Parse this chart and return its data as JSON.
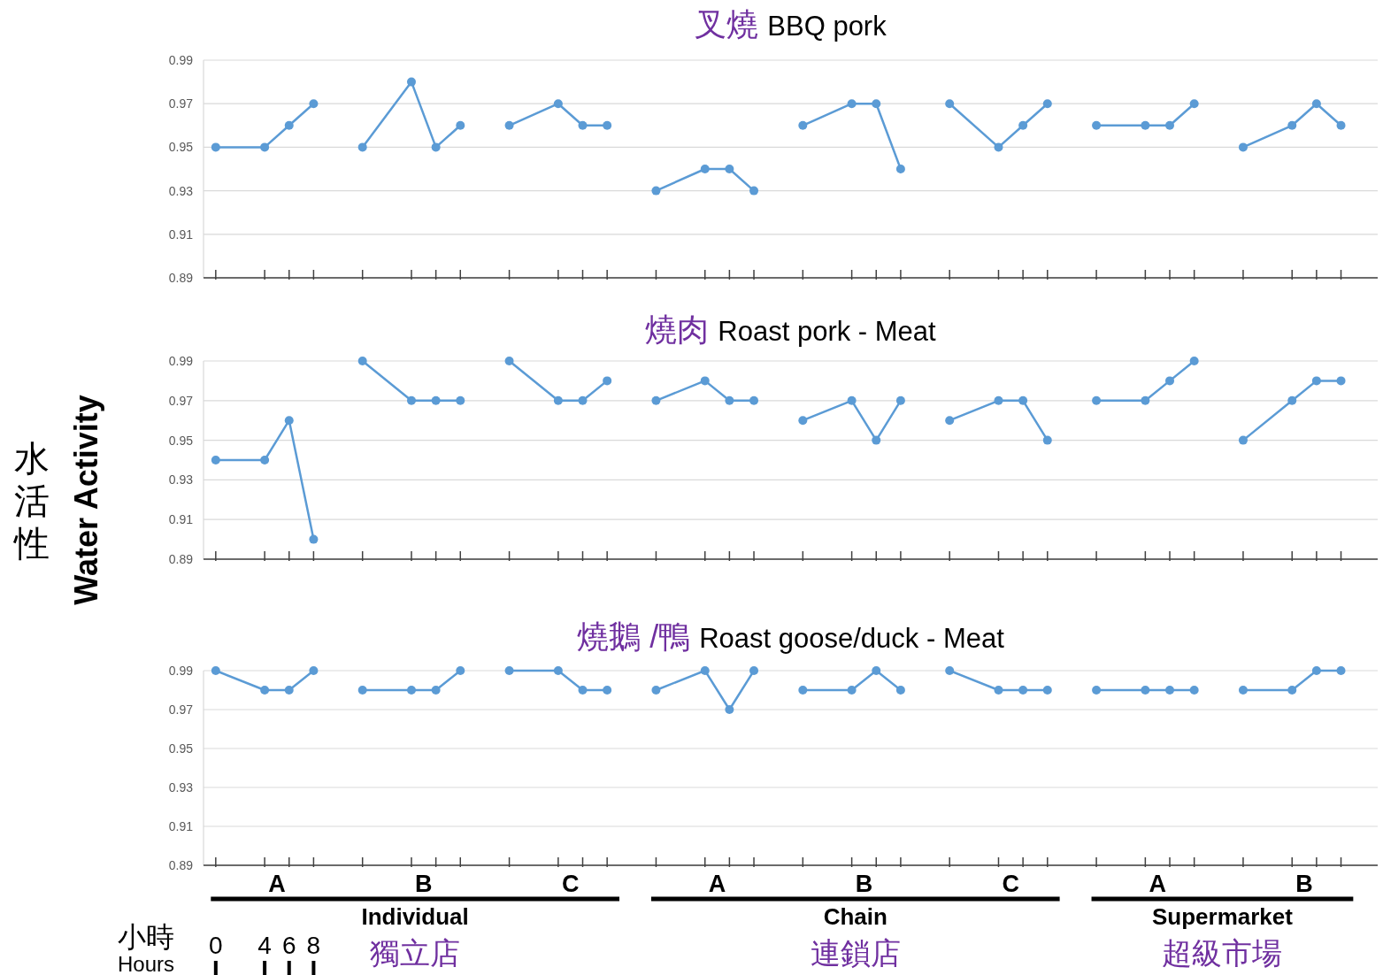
{
  "chart_data": [
    {
      "type": "line",
      "title": "叉燒 BBQ pork",
      "ylim": [
        0.89,
        0.99
      ],
      "yticks": [
        0.89,
        0.91,
        0.93,
        0.95,
        0.97,
        0.99
      ],
      "grid": "y",
      "marker": "circle",
      "categories": [
        null,
        null,
        null,
        null,
        null,
        null,
        null,
        null,
        null,
        null,
        null,
        null,
        null,
        null,
        null,
        null,
        null,
        null,
        null,
        null,
        null,
        null,
        null,
        null,
        null,
        null,
        null,
        null,
        null,
        null,
        null,
        null,
        null,
        null,
        null,
        null,
        null,
        null,
        null,
        null,
        null,
        null,
        null,
        null,
        null,
        null,
        null,
        null
      ],
      "series": [
        {
          "color": "#5b9bd5",
          "values": [
            0.95,
            null,
            0.95,
            0.96,
            0.97,
            null,
            null,
            null,
            null,
            null,
            null,
            null,
            null,
            null,
            null,
            null,
            null,
            null,
            null,
            null,
            null,
            null,
            null,
            null,
            null,
            null,
            null,
            null,
            null,
            null,
            null,
            null,
            null,
            null,
            null,
            null,
            null,
            null,
            null,
            null,
            null,
            null,
            null,
            null,
            null,
            null,
            null,
            null
          ]
        },
        {
          "color": "#5b9bd5",
          "values": [
            null,
            null,
            null,
            null,
            null,
            null,
            0.95,
            null,
            0.98,
            0.95,
            0.96,
            null,
            null,
            null,
            null,
            null,
            null,
            null,
            null,
            null,
            null,
            null,
            null,
            null,
            null,
            null,
            null,
            null,
            null,
            null,
            null,
            null,
            null,
            null,
            null,
            null,
            null,
            null,
            null,
            null,
            null,
            null,
            null,
            null,
            null,
            null,
            null,
            null
          ]
        },
        {
          "color": "#5b9bd5",
          "values": [
            null,
            null,
            null,
            null,
            null,
            null,
            null,
            null,
            null,
            null,
            null,
            null,
            0.96,
            null,
            0.97,
            0.96,
            0.96,
            null,
            null,
            null,
            null,
            null,
            null,
            null,
            null,
            null,
            null,
            null,
            null,
            null,
            null,
            null,
            null,
            null,
            null,
            null,
            null,
            null,
            null,
            null,
            null,
            null,
            null,
            null,
            null,
            null,
            null,
            null
          ]
        },
        {
          "color": "#5b9bd5",
          "values": [
            null,
            null,
            null,
            null,
            null,
            null,
            null,
            null,
            null,
            null,
            null,
            null,
            null,
            null,
            null,
            null,
            null,
            null,
            0.93,
            null,
            0.94,
            0.94,
            0.93,
            null,
            null,
            null,
            null,
            null,
            null,
            null,
            null,
            null,
            null,
            null,
            null,
            null,
            null,
            null,
            null,
            null,
            null,
            null,
            null,
            null,
            null,
            null,
            null,
            null
          ]
        },
        {
          "color": "#5b9bd5",
          "values": [
            null,
            null,
            null,
            null,
            null,
            null,
            null,
            null,
            null,
            null,
            null,
            null,
            null,
            null,
            null,
            null,
            null,
            null,
            null,
            null,
            null,
            null,
            null,
            null,
            0.96,
            null,
            0.97,
            0.97,
            0.94,
            null,
            null,
            null,
            null,
            null,
            null,
            null,
            null,
            null,
            null,
            null,
            null,
            null,
            null,
            null,
            null,
            null,
            null,
            null
          ]
        },
        {
          "color": "#5b9bd5",
          "values": [
            null,
            null,
            null,
            null,
            null,
            null,
            null,
            null,
            null,
            null,
            null,
            null,
            null,
            null,
            null,
            null,
            null,
            null,
            null,
            null,
            null,
            null,
            null,
            null,
            null,
            null,
            null,
            null,
            null,
            null,
            0.97,
            null,
            0.95,
            0.96,
            0.97,
            null,
            null,
            null,
            null,
            null,
            null,
            null,
            null,
            null,
            null,
            null,
            null,
            null
          ]
        },
        {
          "color": "#5b9bd5",
          "values": [
            null,
            null,
            null,
            null,
            null,
            null,
            null,
            null,
            null,
            null,
            null,
            null,
            null,
            null,
            null,
            null,
            null,
            null,
            null,
            null,
            null,
            null,
            null,
            null,
            null,
            null,
            null,
            null,
            null,
            null,
            null,
            null,
            null,
            null,
            null,
            null,
            0.96,
            null,
            0.96,
            0.96,
            0.97,
            null,
            null,
            null,
            null,
            null,
            null,
            null
          ]
        },
        {
          "color": "#5b9bd5",
          "values": [
            null,
            null,
            null,
            null,
            null,
            null,
            null,
            null,
            null,
            null,
            null,
            null,
            null,
            null,
            null,
            null,
            null,
            null,
            null,
            null,
            null,
            null,
            null,
            null,
            null,
            null,
            null,
            null,
            null,
            null,
            null,
            null,
            null,
            null,
            null,
            null,
            null,
            null,
            null,
            null,
            null,
            null,
            0.95,
            null,
            0.96,
            0.97,
            0.96,
            null
          ]
        }
      ]
    },
    {
      "type": "line",
      "title": "燒肉 Roast pork - Meat",
      "ylabel": "Water Activity",
      "annotations": [
        "水活性"
      ],
      "ylim": [
        0.89,
        0.99
      ],
      "yticks": [
        0.89,
        0.91,
        0.93,
        0.95,
        0.97,
        0.99
      ],
      "grid": "y",
      "marker": "circle",
      "categories": [
        null,
        null,
        null,
        null,
        null,
        null,
        null,
        null,
        null,
        null,
        null,
        null,
        null,
        null,
        null,
        null,
        null,
        null,
        null,
        null,
        null,
        null,
        null,
        null,
        null,
        null,
        null,
        null,
        null,
        null,
        null,
        null,
        null,
        null,
        null,
        null,
        null,
        null,
        null,
        null,
        null,
        null,
        null,
        null,
        null,
        null,
        null,
        null
      ],
      "series": [
        {
          "color": "#5b9bd5",
          "values": [
            0.94,
            null,
            0.94,
            0.96,
            0.9,
            null,
            null,
            null,
            null,
            null,
            null,
            null,
            null,
            null,
            null,
            null,
            null,
            null,
            null,
            null,
            null,
            null,
            null,
            null,
            null,
            null,
            null,
            null,
            null,
            null,
            null,
            null,
            null,
            null,
            null,
            null,
            null,
            null,
            null,
            null,
            null,
            null,
            null,
            null,
            null,
            null,
            null,
            null
          ]
        },
        {
          "color": "#5b9bd5",
          "values": [
            null,
            null,
            null,
            null,
            null,
            null,
            0.99,
            null,
            0.97,
            0.97,
            0.97,
            null,
            null,
            null,
            null,
            null,
            null,
            null,
            null,
            null,
            null,
            null,
            null,
            null,
            null,
            null,
            null,
            null,
            null,
            null,
            null,
            null,
            null,
            null,
            null,
            null,
            null,
            null,
            null,
            null,
            null,
            null,
            null,
            null,
            null,
            null,
            null,
            null
          ]
        },
        {
          "color": "#5b9bd5",
          "values": [
            null,
            null,
            null,
            null,
            null,
            null,
            null,
            null,
            null,
            null,
            null,
            null,
            0.99,
            null,
            0.97,
            0.97,
            0.98,
            null,
            null,
            null,
            null,
            null,
            null,
            null,
            null,
            null,
            null,
            null,
            null,
            null,
            null,
            null,
            null,
            null,
            null,
            null,
            null,
            null,
            null,
            null,
            null,
            null,
            null,
            null,
            null,
            null,
            null,
            null
          ]
        },
        {
          "color": "#5b9bd5",
          "values": [
            null,
            null,
            null,
            null,
            null,
            null,
            null,
            null,
            null,
            null,
            null,
            null,
            null,
            null,
            null,
            null,
            null,
            null,
            0.97,
            null,
            0.98,
            0.97,
            0.97,
            null,
            null,
            null,
            null,
            null,
            null,
            null,
            null,
            null,
            null,
            null,
            null,
            null,
            null,
            null,
            null,
            null,
            null,
            null,
            null,
            null,
            null,
            null,
            null,
            null
          ]
        },
        {
          "color": "#5b9bd5",
          "values": [
            null,
            null,
            null,
            null,
            null,
            null,
            null,
            null,
            null,
            null,
            null,
            null,
            null,
            null,
            null,
            null,
            null,
            null,
            null,
            null,
            null,
            null,
            null,
            null,
            0.96,
            null,
            0.97,
            0.95,
            0.97,
            null,
            null,
            null,
            null,
            null,
            null,
            null,
            null,
            null,
            null,
            null,
            null,
            null,
            null,
            null,
            null,
            null,
            null,
            null
          ]
        },
        {
          "color": "#5b9bd5",
          "values": [
            null,
            null,
            null,
            null,
            null,
            null,
            null,
            null,
            null,
            null,
            null,
            null,
            null,
            null,
            null,
            null,
            null,
            null,
            null,
            null,
            null,
            null,
            null,
            null,
            null,
            null,
            null,
            null,
            null,
            null,
            0.96,
            null,
            0.97,
            0.97,
            0.95,
            null,
            null,
            null,
            null,
            null,
            null,
            null,
            null,
            null,
            null,
            null,
            null,
            null
          ]
        },
        {
          "color": "#5b9bd5",
          "values": [
            null,
            null,
            null,
            null,
            null,
            null,
            null,
            null,
            null,
            null,
            null,
            null,
            null,
            null,
            null,
            null,
            null,
            null,
            null,
            null,
            null,
            null,
            null,
            null,
            null,
            null,
            null,
            null,
            null,
            null,
            null,
            null,
            null,
            null,
            null,
            null,
            0.97,
            null,
            0.97,
            0.98,
            0.99,
            null,
            null,
            null,
            null,
            null,
            null,
            null
          ]
        },
        {
          "color": "#5b9bd5",
          "values": [
            null,
            null,
            null,
            null,
            null,
            null,
            null,
            null,
            null,
            null,
            null,
            null,
            null,
            null,
            null,
            null,
            null,
            null,
            null,
            null,
            null,
            null,
            null,
            null,
            null,
            null,
            null,
            null,
            null,
            null,
            null,
            null,
            null,
            null,
            null,
            null,
            null,
            null,
            null,
            null,
            null,
            null,
            0.95,
            null,
            0.97,
            0.98,
            0.98,
            null
          ]
        }
      ]
    },
    {
      "type": "line",
      "title": "燒鵝 /鴨 Roast goose/duck - Meat",
      "annotations": [
        "A",
        "B",
        "C",
        "A",
        "B",
        "C",
        "A",
        "B",
        "Individual",
        "獨立店",
        "Chain",
        "連鎖店",
        "Supermarket",
        "超級市場",
        "小時",
        "Hours",
        "0",
        "4",
        "6",
        "8"
      ],
      "ylim": [
        0.89,
        0.99
      ],
      "yticks": [
        0.89,
        0.91,
        0.93,
        0.95,
        0.97,
        0.99
      ],
      "grid": "y",
      "marker": "circle",
      "categories": [
        null,
        null,
        null,
        null,
        null,
        null,
        null,
        null,
        null,
        null,
        null,
        null,
        null,
        null,
        null,
        null,
        null,
        null,
        null,
        null,
        null,
        null,
        null,
        null,
        null,
        null,
        null,
        null,
        null,
        null,
        null,
        null,
        null,
        null,
        null,
        null,
        null,
        null,
        null,
        null,
        null,
        null,
        null,
        null,
        null,
        null,
        null,
        null
      ],
      "series": [
        {
          "color": "#5b9bd5",
          "values": [
            0.99,
            null,
            0.98,
            0.98,
            0.99,
            null,
            null,
            null,
            null,
            null,
            null,
            null,
            null,
            null,
            null,
            null,
            null,
            null,
            null,
            null,
            null,
            null,
            null,
            null,
            null,
            null,
            null,
            null,
            null,
            null,
            null,
            null,
            null,
            null,
            null,
            null,
            null,
            null,
            null,
            null,
            null,
            null,
            null,
            null,
            null,
            null,
            null,
            null
          ]
        },
        {
          "color": "#5b9bd5",
          "values": [
            null,
            null,
            null,
            null,
            null,
            null,
            0.98,
            null,
            0.98,
            0.98,
            0.99,
            null,
            null,
            null,
            null,
            null,
            null,
            null,
            null,
            null,
            null,
            null,
            null,
            null,
            null,
            null,
            null,
            null,
            null,
            null,
            null,
            null,
            null,
            null,
            null,
            null,
            null,
            null,
            null,
            null,
            null,
            null,
            null,
            null,
            null,
            null,
            null,
            null
          ]
        },
        {
          "color": "#5b9bd5",
          "values": [
            null,
            null,
            null,
            null,
            null,
            null,
            null,
            null,
            null,
            null,
            null,
            null,
            0.99,
            null,
            0.99,
            0.98,
            0.98,
            null,
            null,
            null,
            null,
            null,
            null,
            null,
            null,
            null,
            null,
            null,
            null,
            null,
            null,
            null,
            null,
            null,
            null,
            null,
            null,
            null,
            null,
            null,
            null,
            null,
            null,
            null,
            null,
            null,
            null,
            null
          ]
        },
        {
          "color": "#5b9bd5",
          "values": [
            null,
            null,
            null,
            null,
            null,
            null,
            null,
            null,
            null,
            null,
            null,
            null,
            null,
            null,
            null,
            null,
            null,
            null,
            0.98,
            null,
            0.99,
            0.97,
            0.99,
            null,
            null,
            null,
            null,
            null,
            null,
            null,
            null,
            null,
            null,
            null,
            null,
            null,
            null,
            null,
            null,
            null,
            null,
            null,
            null,
            null,
            null,
            null,
            null,
            null
          ]
        },
        {
          "color": "#5b9bd5",
          "values": [
            null,
            null,
            null,
            null,
            null,
            null,
            null,
            null,
            null,
            null,
            null,
            null,
            null,
            null,
            null,
            null,
            null,
            null,
            null,
            null,
            null,
            null,
            null,
            null,
            0.98,
            null,
            0.98,
            0.99,
            0.98,
            null,
            null,
            null,
            null,
            null,
            null,
            null,
            null,
            null,
            null,
            null,
            null,
            null,
            null,
            null,
            null,
            null,
            null,
            null
          ]
        },
        {
          "color": "#5b9bd5",
          "values": [
            null,
            null,
            null,
            null,
            null,
            null,
            null,
            null,
            null,
            null,
            null,
            null,
            null,
            null,
            null,
            null,
            null,
            null,
            null,
            null,
            null,
            null,
            null,
            null,
            null,
            null,
            null,
            null,
            null,
            null,
            0.99,
            null,
            0.98,
            0.98,
            0.98,
            null,
            null,
            null,
            null,
            null,
            null,
            null,
            null,
            null,
            null,
            null,
            null,
            null
          ]
        },
        {
          "color": "#5b9bd5",
          "values": [
            null,
            null,
            null,
            null,
            null,
            null,
            null,
            null,
            null,
            null,
            null,
            null,
            null,
            null,
            null,
            null,
            null,
            null,
            null,
            null,
            null,
            null,
            null,
            null,
            null,
            null,
            null,
            null,
            null,
            null,
            null,
            null,
            null,
            null,
            null,
            null,
            0.98,
            null,
            0.98,
            0.98,
            0.98,
            null,
            null,
            null,
            null,
            null,
            null,
            null
          ]
        },
        {
          "color": "#5b9bd5",
          "values": [
            null,
            null,
            null,
            null,
            null,
            null,
            null,
            null,
            null,
            null,
            null,
            null,
            null,
            null,
            null,
            null,
            null,
            null,
            null,
            null,
            null,
            null,
            null,
            null,
            null,
            null,
            null,
            null,
            null,
            null,
            null,
            null,
            null,
            null,
            null,
            null,
            null,
            null,
            null,
            null,
            null,
            null,
            0.98,
            null,
            0.98,
            0.99,
            0.99,
            null
          ]
        }
      ]
    }
  ]
}
